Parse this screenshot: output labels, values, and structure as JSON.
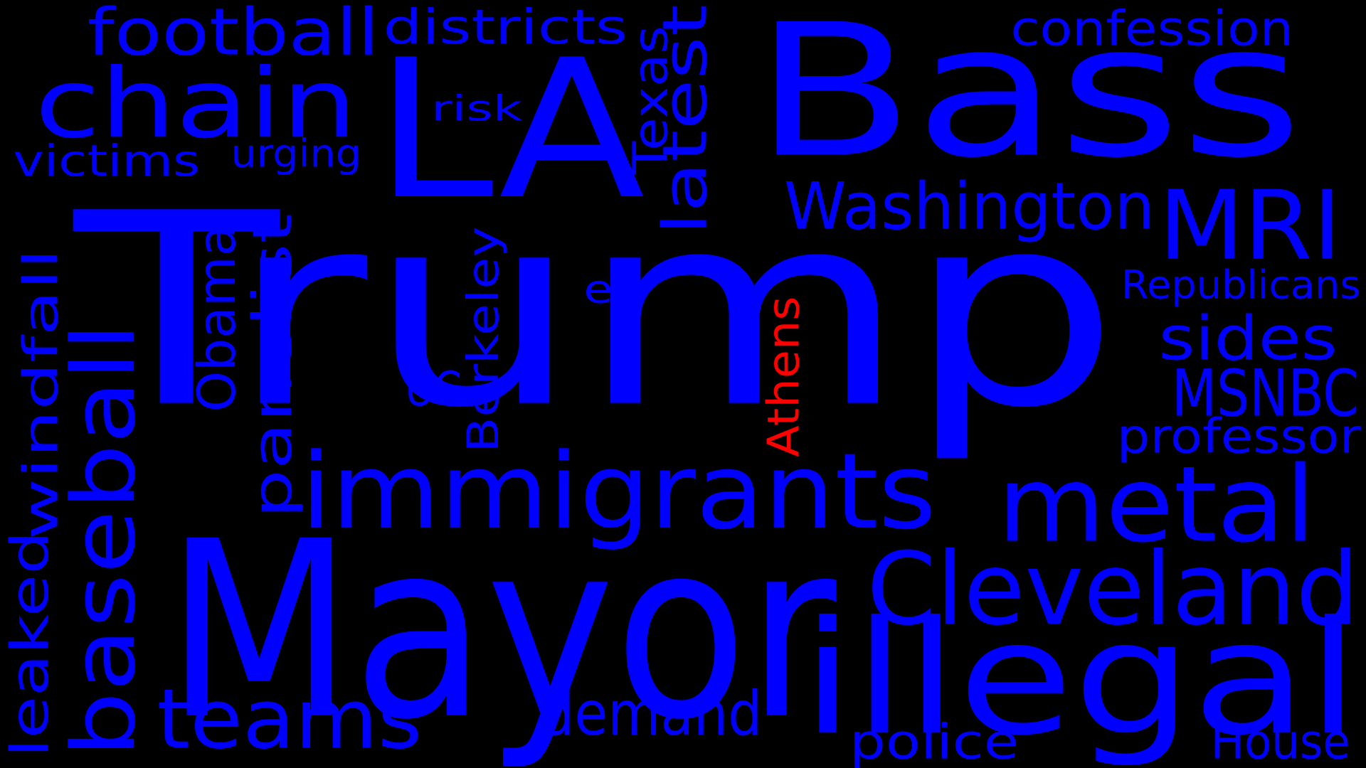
{
  "background_color": "#000000",
  "primary_color": "#0000ff",
  "highlight_color": "#ff0000",
  "words": [
    {
      "text": "Trump",
      "color": "#0000ff"
    },
    {
      "text": "Mayor",
      "color": "#0000ff"
    },
    {
      "text": "Bass",
      "color": "#0000ff"
    },
    {
      "text": "LA",
      "color": "#0000ff"
    },
    {
      "text": "illegal",
      "color": "#0000ff"
    },
    {
      "text": "immigrants",
      "color": "#0000ff"
    },
    {
      "text": "metal",
      "color": "#0000ff"
    },
    {
      "text": "Cleveland",
      "color": "#0000ff"
    },
    {
      "text": "chain",
      "color": "#0000ff"
    },
    {
      "text": "MRI",
      "color": "#0000ff"
    },
    {
      "text": "teams",
      "color": "#0000ff"
    },
    {
      "text": "baseball",
      "color": "#0000ff"
    },
    {
      "text": "football",
      "color": "#0000ff"
    },
    {
      "text": "demand",
      "color": "#0000ff"
    },
    {
      "text": "Washington",
      "color": "#0000ff"
    },
    {
      "text": "MSNBC",
      "color": "#0000ff"
    },
    {
      "text": "sides",
      "color": "#0000ff"
    },
    {
      "text": "latest",
      "color": "#0000ff"
    },
    {
      "text": "panelist",
      "color": "#0000ff"
    },
    {
      "text": "Obama",
      "color": "#0000ff"
    },
    {
      "text": "windfall",
      "color": "#0000ff"
    },
    {
      "text": "leaked",
      "color": "#0000ff"
    },
    {
      "text": "confession",
      "color": "#0000ff"
    },
    {
      "text": "professor",
      "color": "#0000ff"
    },
    {
      "text": "police",
      "color": "#0000ff"
    },
    {
      "text": "House",
      "color": "#0000ff"
    },
    {
      "text": "districts",
      "color": "#0000ff"
    },
    {
      "text": "victims",
      "color": "#0000ff"
    },
    {
      "text": "urging",
      "color": "#0000ff"
    },
    {
      "text": "Texas",
      "color": "#0000ff"
    },
    {
      "text": "Republicans",
      "color": "#0000ff"
    },
    {
      "text": "Berkeley",
      "color": "#0000ff"
    },
    {
      "text": "UC",
      "color": "#0000ff"
    },
    {
      "text": "ex",
      "color": "#0000ff"
    },
    {
      "text": "risk",
      "color": "#0000ff"
    },
    {
      "text": "Athens",
      "color": "#ff0000"
    }
  ]
}
